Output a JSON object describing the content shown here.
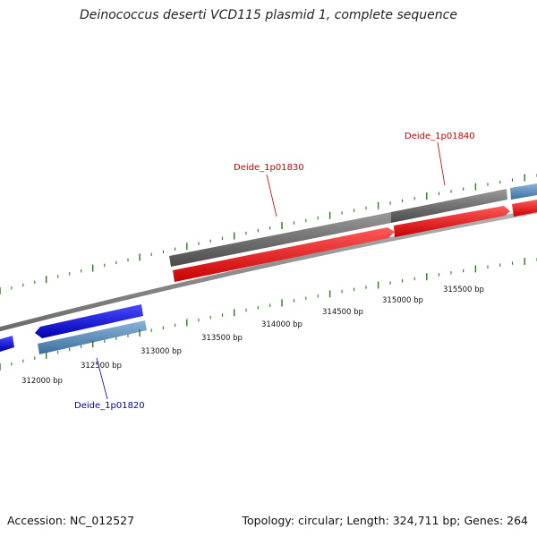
{
  "title": "Deinococcus deserti VCD115 plasmid 1, complete sequence",
  "footer": {
    "accession": "Accession: NC_012527",
    "summary": "Topology: circular; Length: 324,711 bp; Genes: 264"
  },
  "colors": {
    "forward_cds": "#ee1111",
    "forward_gene": "#6b6b6b",
    "reverse_cds": "#1010dd",
    "reverse_gene": "#5b8fc0",
    "backbone": "#8a8a8a",
    "ticks": "#2a7d1a",
    "forward_label": "#cc0000",
    "reverse_label": "#0000aa"
  },
  "ticks": [
    {
      "label": "312000 bp"
    },
    {
      "label": "312500 bp"
    },
    {
      "label": "313000 bp"
    },
    {
      "label": "313500 bp"
    },
    {
      "label": "314000 bp"
    },
    {
      "label": "314500 bp"
    },
    {
      "label": "315000 bp"
    },
    {
      "label": "315500 bp"
    }
  ],
  "genes": [
    {
      "name": "Deide_1p01830",
      "strand": "forward"
    },
    {
      "name": "Deide_1p01840",
      "strand": "forward"
    },
    {
      "name": "Deide_1p01820",
      "strand": "reverse"
    }
  ]
}
